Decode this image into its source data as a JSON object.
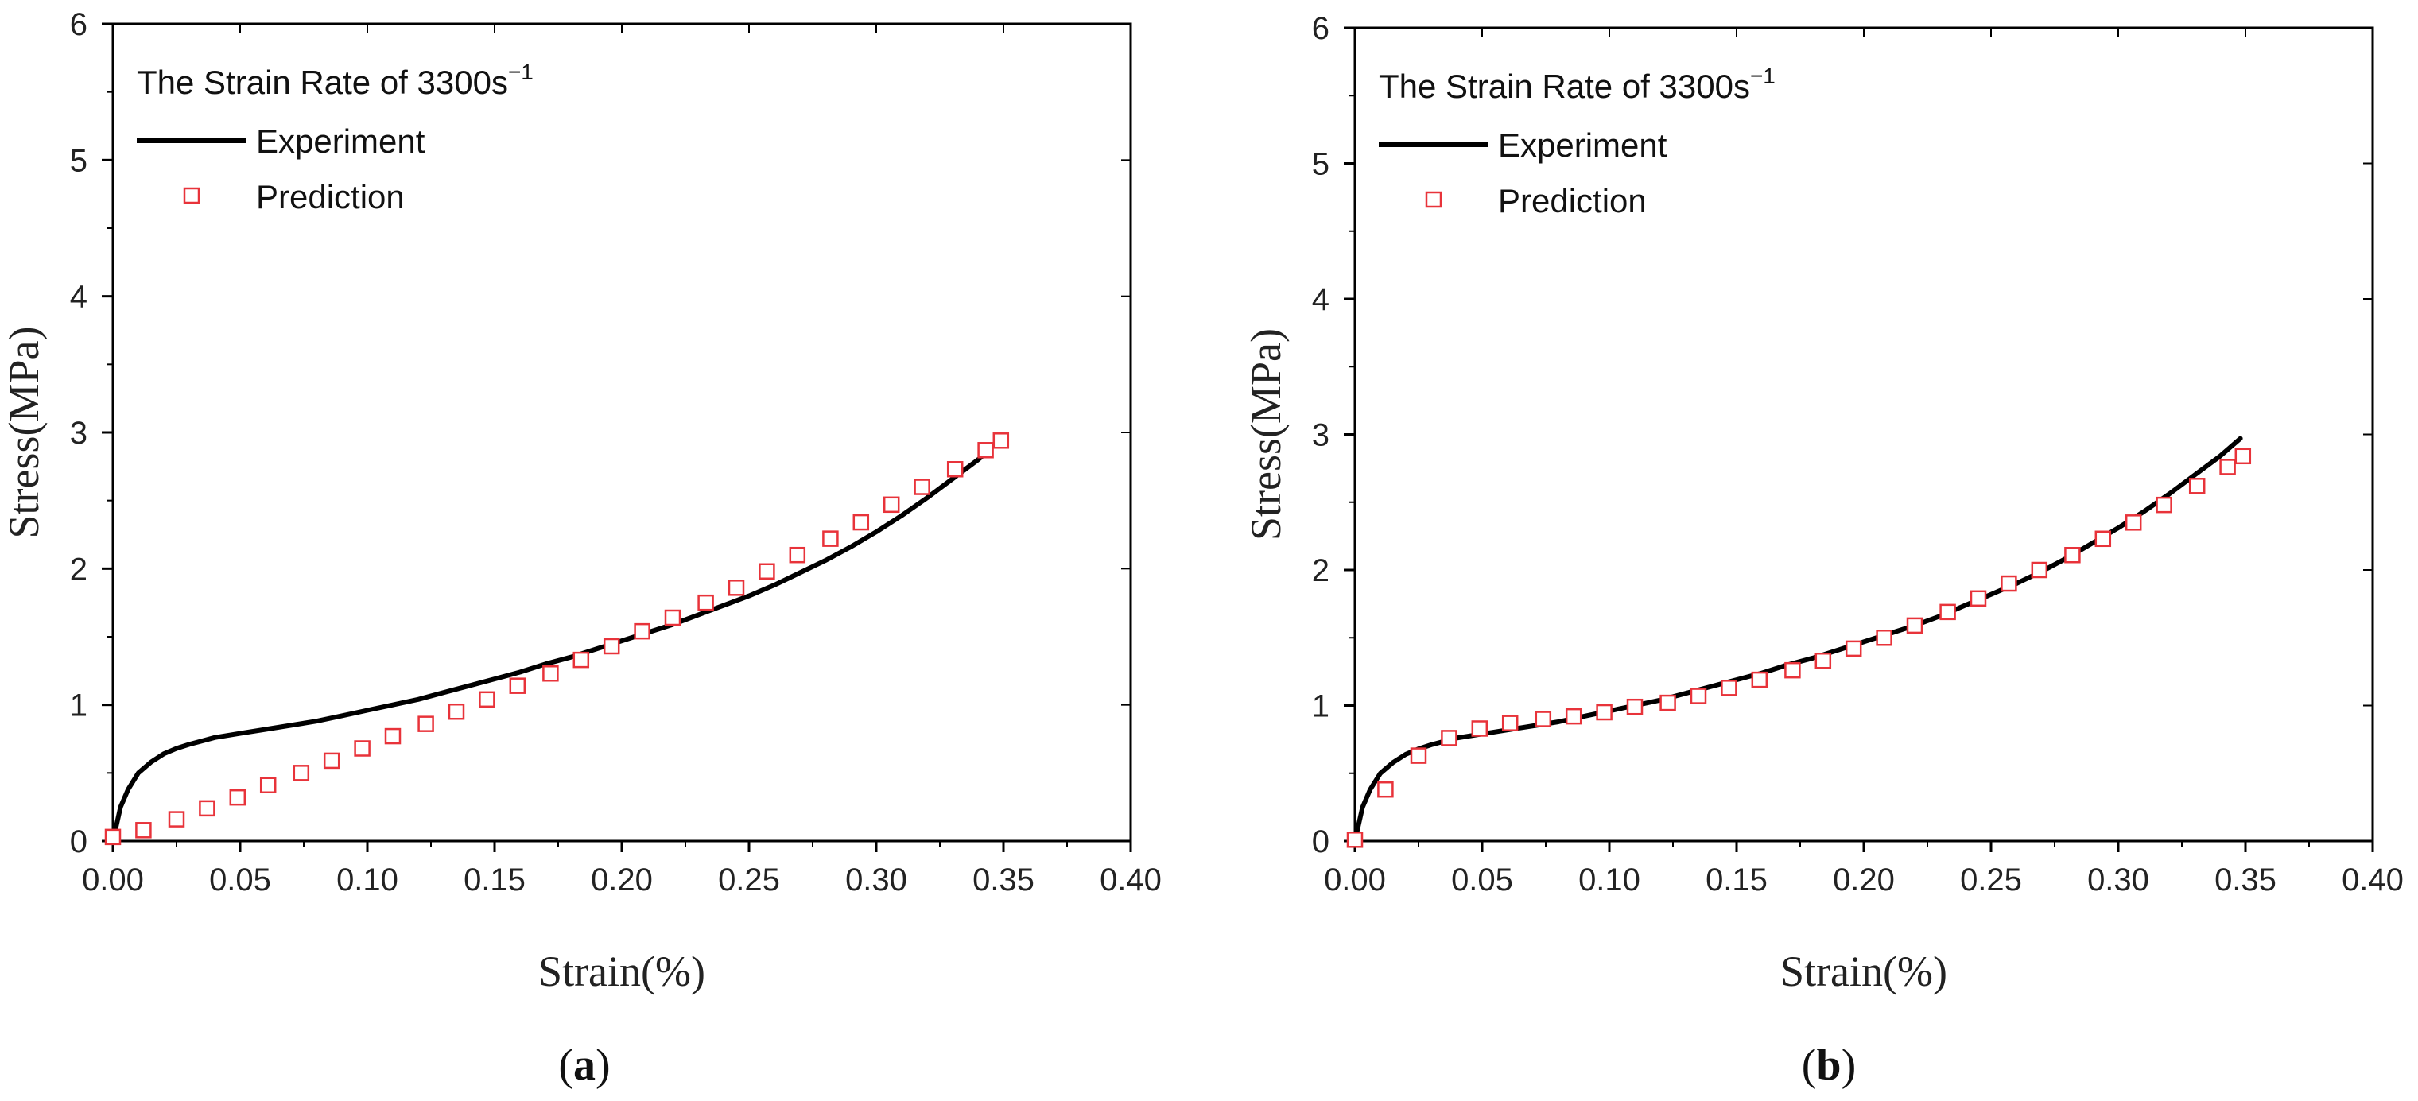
{
  "chart_data": [
    {
      "type": "line",
      "panel_label": "a",
      "legend_title": "The Strain Rate of 3300s",
      "legend_title_exponent": "−1",
      "xlabel": "Strain(%)",
      "ylabel": "Stress(MPa)",
      "xlim": [
        0,
        0.4
      ],
      "ylim": [
        0,
        6
      ],
      "xticks": [
        "0.00",
        "0.05",
        "0.10",
        "0.15",
        "0.20",
        "0.25",
        "0.30",
        "0.35",
        "0.40"
      ],
      "yticks": [
        "0",
        "1",
        "2",
        "3",
        "4",
        "5",
        "6"
      ],
      "legend_position": "top-left",
      "series": [
        {
          "name": "Experiment",
          "style": "line",
          "color": "#000000",
          "x": [
            0,
            0.003,
            0.006,
            0.01,
            0.015,
            0.02,
            0.025,
            0.03,
            0.04,
            0.05,
            0.06,
            0.07,
            0.08,
            0.09,
            0.1,
            0.11,
            0.12,
            0.13,
            0.14,
            0.15,
            0.16,
            0.17,
            0.18,
            0.19,
            0.2,
            0.21,
            0.22,
            0.23,
            0.24,
            0.25,
            0.26,
            0.27,
            0.28,
            0.29,
            0.3,
            0.31,
            0.32,
            0.33,
            0.34,
            0.345
          ],
          "y": [
            0,
            0.25,
            0.38,
            0.5,
            0.58,
            0.64,
            0.68,
            0.71,
            0.76,
            0.79,
            0.82,
            0.85,
            0.88,
            0.92,
            0.96,
            1.0,
            1.04,
            1.09,
            1.14,
            1.19,
            1.24,
            1.3,
            1.35,
            1.41,
            1.47,
            1.53,
            1.59,
            1.66,
            1.73,
            1.8,
            1.88,
            1.97,
            2.06,
            2.16,
            2.27,
            2.39,
            2.52,
            2.66,
            2.8,
            2.88
          ]
        },
        {
          "name": "Prediction",
          "style": "open-square",
          "color": "#e8333a",
          "x": [
            0,
            0.012,
            0.025,
            0.037,
            0.049,
            0.061,
            0.074,
            0.086,
            0.098,
            0.11,
            0.123,
            0.135,
            0.147,
            0.159,
            0.172,
            0.184,
            0.196,
            0.208,
            0.22,
            0.233,
            0.245,
            0.257,
            0.269,
            0.282,
            0.294,
            0.306,
            0.318,
            0.331,
            0.343,
            0.349
          ],
          "y": [
            0.03,
            0.08,
            0.16,
            0.24,
            0.32,
            0.41,
            0.5,
            0.59,
            0.68,
            0.77,
            0.86,
            0.95,
            1.04,
            1.14,
            1.23,
            1.33,
            1.43,
            1.54,
            1.64,
            1.75,
            1.86,
            1.98,
            2.1,
            2.22,
            2.34,
            2.47,
            2.6,
            2.73,
            2.87,
            2.94
          ]
        }
      ]
    },
    {
      "type": "line",
      "panel_label": "b",
      "legend_title": "The Strain Rate of 3300s",
      "legend_title_exponent": "−1",
      "xlabel": "Strain(%)",
      "ylabel": "Stress(MPa)",
      "xlim": [
        0,
        0.4
      ],
      "ylim": [
        0,
        6
      ],
      "xticks": [
        "0.00",
        "0.05",
        "0.10",
        "0.15",
        "0.20",
        "0.25",
        "0.30",
        "0.35",
        "0.40"
      ],
      "yticks": [
        "0",
        "1",
        "2",
        "3",
        "4",
        "5",
        "6"
      ],
      "legend_position": "top-left",
      "series": [
        {
          "name": "Experiment",
          "style": "line",
          "color": "#000000",
          "x": [
            0,
            0.003,
            0.006,
            0.01,
            0.015,
            0.02,
            0.025,
            0.03,
            0.04,
            0.05,
            0.06,
            0.07,
            0.08,
            0.09,
            0.1,
            0.11,
            0.12,
            0.13,
            0.14,
            0.15,
            0.16,
            0.17,
            0.18,
            0.19,
            0.2,
            0.21,
            0.22,
            0.23,
            0.24,
            0.25,
            0.26,
            0.27,
            0.28,
            0.29,
            0.3,
            0.31,
            0.32,
            0.33,
            0.34,
            0.348
          ],
          "y": [
            0,
            0.25,
            0.38,
            0.5,
            0.58,
            0.64,
            0.68,
            0.71,
            0.76,
            0.79,
            0.82,
            0.85,
            0.88,
            0.92,
            0.96,
            1.0,
            1.04,
            1.09,
            1.14,
            1.19,
            1.24,
            1.3,
            1.35,
            1.41,
            1.47,
            1.53,
            1.59,
            1.66,
            1.74,
            1.82,
            1.9,
            1.99,
            2.09,
            2.2,
            2.31,
            2.43,
            2.56,
            2.7,
            2.84,
            2.97
          ]
        },
        {
          "name": "Prediction",
          "style": "open-square",
          "color": "#e8333a",
          "x": [
            0,
            0.012,
            0.025,
            0.037,
            0.049,
            0.061,
            0.074,
            0.086,
            0.098,
            0.11,
            0.123,
            0.135,
            0.147,
            0.159,
            0.172,
            0.184,
            0.196,
            0.208,
            0.22,
            0.233,
            0.245,
            0.257,
            0.269,
            0.282,
            0.294,
            0.306,
            0.318,
            0.331,
            0.343,
            0.349
          ],
          "y": [
            0.01,
            0.38,
            0.63,
            0.76,
            0.83,
            0.87,
            0.9,
            0.92,
            0.95,
            0.99,
            1.02,
            1.07,
            1.13,
            1.19,
            1.26,
            1.33,
            1.42,
            1.5,
            1.59,
            1.69,
            1.79,
            1.9,
            2.0,
            2.11,
            2.23,
            2.35,
            2.48,
            2.62,
            2.76,
            2.84
          ]
        }
      ]
    }
  ]
}
